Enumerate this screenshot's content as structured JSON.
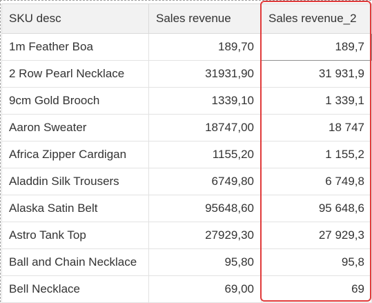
{
  "table": {
    "columns": [
      "SKU desc",
      "Sales revenue",
      "Sales revenue_2"
    ],
    "rows": [
      {
        "sku": "1m Feather Boa",
        "revenue": "189,70",
        "revenue2": "189,7"
      },
      {
        "sku": "2 Row Pearl Necklace",
        "revenue": "31931,90",
        "revenue2": "31 931,9"
      },
      {
        "sku": "9cm Gold Brooch",
        "revenue": "1339,10",
        "revenue2": "1 339,1"
      },
      {
        "sku": "Aaron Sweater",
        "revenue": "18747,00",
        "revenue2": "18 747"
      },
      {
        "sku": "Africa Zipper Cardigan",
        "revenue": "1155,20",
        "revenue2": "1 155,2"
      },
      {
        "sku": "Aladdin Silk Trousers",
        "revenue": "6749,80",
        "revenue2": "6 749,8"
      },
      {
        "sku": "Alaska Satin Belt",
        "revenue": "95648,60",
        "revenue2": "95 648,6"
      },
      {
        "sku": "Astro Tank Top",
        "revenue": "27929,30",
        "revenue2": "27 929,3"
      },
      {
        "sku": "Ball and Chain Necklace",
        "revenue": "95,80",
        "revenue2": "95,8"
      },
      {
        "sku": "Bell Necklace",
        "revenue": "69,00",
        "revenue2": "69"
      }
    ]
  },
  "colors": {
    "highlight": "#e03a3a",
    "header_bg": "#f2f2f2",
    "grid": "#e2e2e2"
  }
}
